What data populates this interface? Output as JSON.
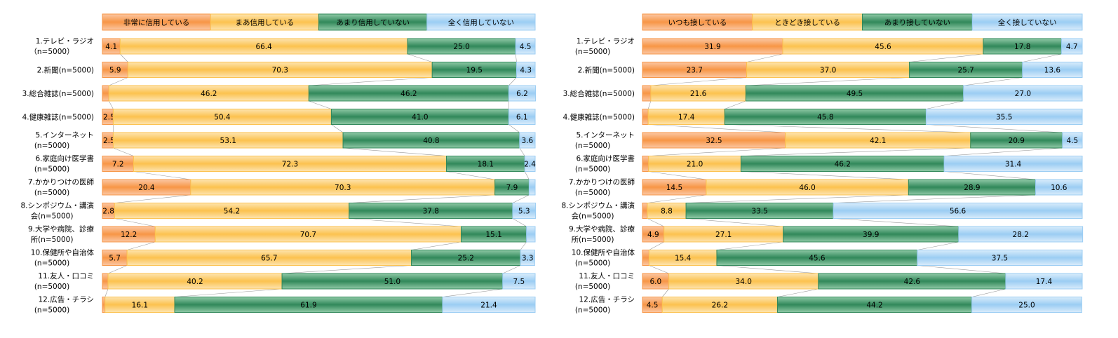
{
  "chart_data": [
    {
      "type": "bar",
      "stacked": true,
      "orientation": "horizontal",
      "normalized": "100%",
      "title": "",
      "xlabel": "",
      "ylabel": "",
      "xlim": [
        0,
        100
      ],
      "grid": false,
      "legend_position": "top",
      "categories": [
        [
          "1.テレビ・ラジオ",
          "（n=5000）"
        ],
        [
          "2.新聞(n=5000)"
        ],
        [
          "3.総合雑誌(n=5000)"
        ],
        [
          "4.健康雑誌(n=5000)"
        ],
        [
          "5.インターネット",
          "(n=5000)"
        ],
        [
          "6.家庭向け医学書",
          "(n=5000)"
        ],
        [
          "7.かかりつけの医師",
          "(n=5000)"
        ],
        [
          "8.シンポジウム・講演",
          "会(n=5000)"
        ],
        [
          "9.大学や病院、診療",
          "所(n=5000)"
        ],
        [
          "10.保健所や自治体",
          "(n=5000)"
        ],
        [
          "11.友人・口コミ",
          "(n=5000)"
        ],
        [
          "12.広告・チラシ",
          "(n=5000)"
        ]
      ],
      "series": [
        {
          "name": "非常に信用している",
          "color": "#f79646",
          "values": [
            4.1,
            5.9,
            1.5,
            2.5,
            2.5,
            7.2,
            20.4,
            2.8,
            12.2,
            5.7,
            1.3,
            0.6
          ],
          "labels": [
            "4.1",
            "5.9",
            "",
            "2.5",
            "2.5",
            "7.2",
            "20.4",
            "2.8",
            "12.2",
            "5.7",
            "",
            ""
          ]
        },
        {
          "name": "まあ信用している",
          "color": "#fcc24f",
          "values": [
            66.4,
            70.3,
            46.2,
            50.4,
            53.1,
            72.3,
            70.3,
            54.2,
            70.7,
            65.7,
            40.2,
            16.1
          ],
          "labels": [
            "66.4",
            "70.3",
            "46.2",
            "50.4",
            "53.1",
            "72.3",
            "70.3",
            "54.2",
            "70.7",
            "65.7",
            "40.2",
            "16.1"
          ]
        },
        {
          "name": "あまり信用していない",
          "color": "#31885a",
          "values": [
            25.0,
            19.5,
            46.2,
            41.0,
            40.8,
            18.1,
            7.9,
            37.8,
            15.1,
            25.2,
            51.0,
            61.9
          ],
          "labels": [
            "25.0",
            "19.5",
            "46.2",
            "41.0",
            "40.8",
            "18.1",
            "7.9",
            "37.8",
            "15.1",
            "25.2",
            "51.0",
            "61.9"
          ]
        },
        {
          "name": "全く信用していない",
          "color": "#9bcdf3",
          "values": [
            4.5,
            4.3,
            6.2,
            6.1,
            3.6,
            2.4,
            1.4,
            5.3,
            2.0,
            3.3,
            7.5,
            21.4
          ],
          "labels": [
            "4.5",
            "4.3",
            "6.2",
            "6.1",
            "3.6",
            "2.4",
            "",
            "5.3",
            "",
            "3.3",
            "7.5",
            "21.4"
          ]
        }
      ]
    },
    {
      "type": "bar",
      "stacked": true,
      "orientation": "horizontal",
      "normalized": "100%",
      "title": "",
      "xlabel": "",
      "ylabel": "",
      "xlim": [
        0,
        100
      ],
      "grid": false,
      "legend_position": "top",
      "categories": [
        [
          "1.テレビ・ラジオ",
          "(n=5000)"
        ],
        [
          "2.新聞(n=5000)"
        ],
        [
          "3.総合雑誌(n=5000)"
        ],
        [
          "4.健康雑誌(n=5000)"
        ],
        [
          "5.インターネット",
          "(n=5000)"
        ],
        [
          "6.家庭向け医学書",
          "(n=5000)"
        ],
        [
          "7.かかりつけの医師",
          "(n=5000)"
        ],
        [
          "8.シンポジウム・講演",
          "会(n=5000)"
        ],
        [
          "9.大学や病院、診療",
          "所(n=5000)"
        ],
        [
          "10.保健所や自治体",
          "(n=5000)"
        ],
        [
          "11.友人・口コミ",
          "(n=5000)"
        ],
        [
          "12.広告・チラシ",
          "(n=5000)"
        ]
      ],
      "series": [
        {
          "name": "いつも接している",
          "color": "#f79646",
          "values": [
            31.9,
            23.7,
            1.9,
            1.3,
            32.5,
            1.4,
            14.5,
            1.1,
            4.9,
            1.5,
            6.0,
            4.5
          ],
          "labels": [
            "31.9",
            "23.7",
            "",
            "",
            "32.5",
            "",
            "14.5",
            "",
            "4.9",
            "",
            "6.0",
            "4.5"
          ]
        },
        {
          "name": "ときどき接している",
          "color": "#fcc24f",
          "values": [
            45.6,
            37.0,
            21.6,
            17.4,
            42.1,
            21.0,
            46.0,
            8.8,
            27.1,
            15.4,
            34.0,
            26.2
          ],
          "labels": [
            "45.6",
            "37.0",
            "21.6",
            "17.4",
            "42.1",
            "21.0",
            "46.0",
            "8.8",
            "27.1",
            "15.4",
            "34.0",
            "26.2"
          ]
        },
        {
          "name": "あまり接していない",
          "color": "#31885a",
          "values": [
            17.8,
            25.7,
            49.5,
            45.8,
            20.9,
            46.2,
            28.9,
            33.5,
            39.9,
            45.6,
            42.6,
            44.2
          ],
          "labels": [
            "17.8",
            "25.7",
            "49.5",
            "45.8",
            "20.9",
            "46.2",
            "28.9",
            "33.5",
            "39.9",
            "45.6",
            "42.6",
            "44.2"
          ]
        },
        {
          "name": "全く接していない",
          "color": "#9bcdf3",
          "values": [
            4.7,
            13.6,
            27.0,
            35.5,
            4.5,
            31.4,
            10.6,
            56.6,
            28.2,
            37.5,
            17.4,
            25.0
          ],
          "labels": [
            "4.7",
            "13.6",
            "27.0",
            "35.5",
            "4.5",
            "31.4",
            "10.6",
            "56.6",
            "28.2",
            "37.5",
            "17.4",
            "25.0"
          ]
        }
      ]
    }
  ]
}
